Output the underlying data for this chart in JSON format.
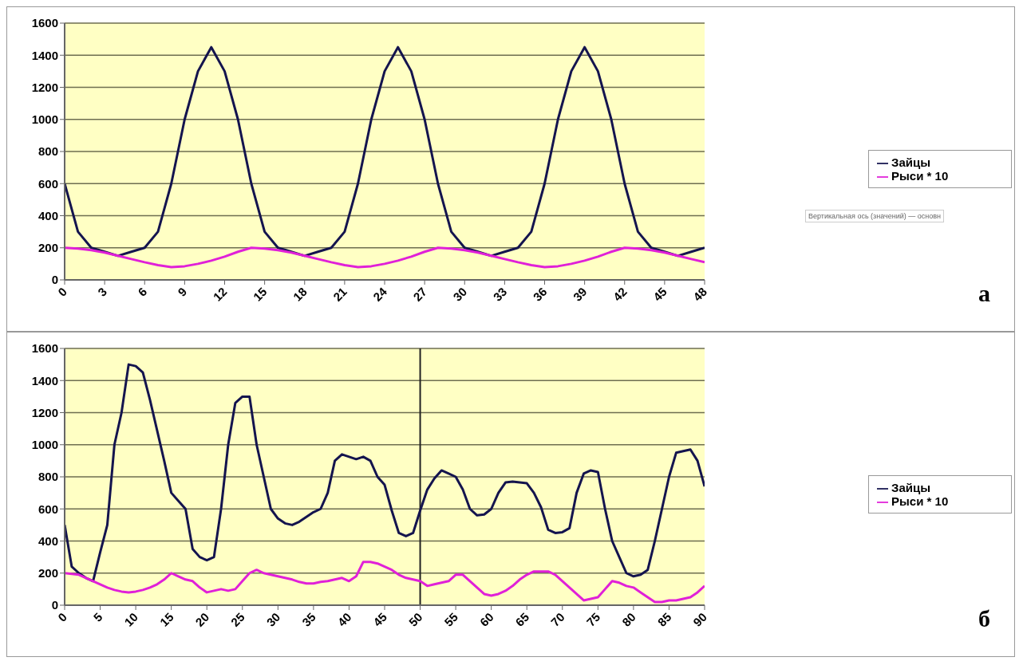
{
  "chart_data": [
    {
      "type": "line",
      "x": [
        0,
        1,
        2,
        3,
        4,
        5,
        6,
        7,
        8,
        9,
        10,
        11,
        12,
        13,
        14,
        15,
        16,
        17,
        18,
        19,
        20,
        21,
        22,
        23,
        24,
        25,
        26,
        27,
        28,
        29,
        30,
        31,
        32,
        33,
        34,
        35,
        36,
        37,
        38,
        39,
        40,
        41,
        42,
        43,
        44,
        45,
        46,
        47,
        48
      ],
      "series": [
        {
          "name": "Зайцы",
          "color": "#14144e",
          "values": [
            600,
            300,
            200,
            175,
            150,
            175,
            200,
            300,
            600,
            1000,
            1300,
            1450,
            1300,
            1000,
            600,
            300,
            200,
            175,
            150,
            175,
            200,
            300,
            600,
            1000,
            1300,
            1450,
            1300,
            1000,
            600,
            300,
            200,
            175,
            150,
            175,
            200,
            300,
            600,
            1000,
            1300,
            1450,
            1300,
            1000,
            600,
            300,
            200,
            175,
            150,
            175,
            200
          ]
        },
        {
          "name": "Рыси * 10",
          "color": "#e020d8",
          "values": [
            200,
            195,
            185,
            170,
            150,
            130,
            110,
            92,
            80,
            85,
            100,
            120,
            145,
            175,
            200,
            195,
            185,
            170,
            150,
            130,
            110,
            92,
            80,
            85,
            100,
            120,
            145,
            175,
            200,
            195,
            185,
            170,
            150,
            130,
            110,
            92,
            80,
            85,
            100,
            120,
            145,
            175,
            200,
            195,
            185,
            170,
            150,
            130,
            110
          ]
        }
      ],
      "xlim": [
        0,
        48
      ],
      "xticks": [
        0,
        3,
        6,
        9,
        12,
        15,
        18,
        21,
        24,
        27,
        30,
        33,
        36,
        39,
        42,
        45,
        48
      ],
      "ylim": [
        0,
        1600
      ],
      "yticks": [
        0,
        200,
        400,
        600,
        800,
        1000,
        1200,
        1400,
        1600
      ],
      "grid": "y",
      "legend": "right",
      "marker": "none",
      "line_style": "solid",
      "annotations": [
        "Вертикальная ось (значений)  — основн",
        "а"
      ]
    },
    {
      "type": "line",
      "x": [
        0,
        1,
        2,
        3,
        4,
        5,
        6,
        7,
        8,
        9,
        10,
        11,
        12,
        13,
        14,
        15,
        16,
        17,
        18,
        19,
        20,
        21,
        22,
        23,
        24,
        25,
        26,
        27,
        28,
        29,
        30,
        31,
        32,
        33,
        34,
        35,
        36,
        37,
        38,
        39,
        40,
        41,
        42,
        43,
        44,
        45,
        46,
        47,
        48,
        49,
        50,
        51,
        52,
        53,
        54,
        55,
        56,
        57,
        58,
        59,
        60,
        61,
        62,
        63,
        64,
        65,
        66,
        67,
        68,
        69,
        70,
        71,
        72,
        73,
        74,
        75,
        76,
        77,
        78,
        79,
        80,
        81,
        82,
        83,
        84,
        85,
        86,
        87,
        88,
        89,
        90
      ],
      "series": [
        {
          "name": "Зайцы",
          "color": "#14144e",
          "values": [
            500,
            240,
            200,
            170,
            150,
            330,
            500,
            1000,
            1200,
            1500,
            1490,
            1450,
            1280,
            1090,
            900,
            700,
            650,
            600,
            350,
            300,
            280,
            300,
            600,
            1000,
            1260,
            1300,
            1300,
            1000,
            800,
            600,
            540,
            510,
            500,
            520,
            550,
            580,
            600,
            700,
            900,
            940,
            925,
            910,
            925,
            900,
            800,
            750,
            590,
            450,
            430,
            450,
            590,
            720,
            790,
            840,
            820,
            800,
            720,
            600,
            560,
            565,
            600,
            700,
            765,
            770,
            765,
            760,
            700,
            610,
            470,
            450,
            455,
            480,
            700,
            820,
            840,
            830,
            600,
            400,
            300,
            200,
            180,
            190,
            220,
            400,
            600,
            800,
            950,
            960,
            970,
            900,
            740
          ]
        },
        {
          "name": "Рыси * 10",
          "color": "#e020d8",
          "values": [
            200,
            195,
            190,
            170,
            150,
            130,
            110,
            95,
            85,
            80,
            85,
            95,
            110,
            130,
            160,
            200,
            180,
            160,
            150,
            110,
            80,
            90,
            100,
            90,
            100,
            150,
            200,
            220,
            200,
            190,
            180,
            170,
            160,
            145,
            135,
            135,
            145,
            150,
            160,
            170,
            150,
            180,
            270,
            270,
            260,
            240,
            220,
            190,
            170,
            160,
            150,
            120,
            130,
            140,
            150,
            190,
            190,
            150,
            110,
            70,
            60,
            70,
            90,
            120,
            160,
            190,
            210,
            210,
            210,
            190,
            150,
            110,
            70,
            30,
            40,
            50,
            100,
            150,
            140,
            120,
            110,
            80,
            50,
            20,
            20,
            30,
            30,
            40,
            50,
            80,
            120
          ]
        }
      ],
      "xlim": [
        0,
        90
      ],
      "xticks": [
        0,
        5,
        10,
        15,
        20,
        25,
        30,
        35,
        40,
        45,
        50,
        55,
        60,
        65,
        70,
        75,
        80,
        85,
        90
      ],
      "ylim": [
        0,
        1600
      ],
      "yticks": [
        0,
        200,
        400,
        600,
        800,
        1000,
        1200,
        1400,
        1600
      ],
      "grid": "y",
      "legend": "right",
      "marker": "none",
      "line_style": "solid",
      "ref_lines": [
        {
          "axis": "x",
          "value": 50,
          "color": "#222222"
        }
      ],
      "annotations": [
        "б"
      ]
    }
  ]
}
